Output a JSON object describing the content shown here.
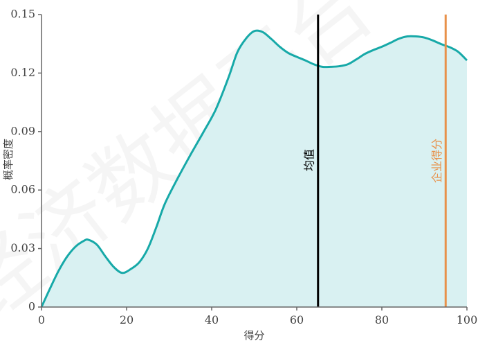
{
  "chart_data": {
    "type": "area",
    "xlabel": "得分",
    "ylabel": "概率密度",
    "xlim": [
      0,
      100
    ],
    "ylim": [
      0,
      0.15
    ],
    "x_ticks": [
      "0",
      "20",
      "40",
      "60",
      "80",
      "100"
    ],
    "y_ticks": [
      "0",
      "0.03",
      "0.06",
      "0.09",
      "0.12",
      "0.15"
    ],
    "grid": false,
    "series": [
      {
        "x": [
          0,
          2,
          4,
          6,
          8,
          10,
          11,
          13,
          15,
          17,
          19,
          21,
          23,
          25,
          27,
          29,
          32,
          35,
          38,
          41,
          44,
          46,
          48,
          50,
          52,
          54,
          56,
          58,
          60,
          62,
          64,
          66,
          68,
          70,
          72,
          74,
          76,
          78,
          80,
          82,
          84,
          86,
          88,
          90,
          92,
          94,
          96,
          98,
          100
        ],
        "y": [
          0.0,
          0.0095,
          0.0185,
          0.0258,
          0.031,
          0.034,
          0.0345,
          0.032,
          0.026,
          0.0205,
          0.0175,
          0.0195,
          0.023,
          0.03,
          0.041,
          0.053,
          0.066,
          0.078,
          0.0895,
          0.1015,
          0.118,
          0.1305,
          0.1375,
          0.1415,
          0.141,
          0.1375,
          0.1335,
          0.1303,
          0.1283,
          0.1265,
          0.1245,
          0.1232,
          0.1232,
          0.1235,
          0.1245,
          0.127,
          0.1298,
          0.1318,
          0.1335,
          0.1355,
          0.1376,
          0.1388,
          0.1388,
          0.1382,
          0.1367,
          0.1348,
          0.1332,
          0.1308,
          0.1265
        ],
        "line_color": "#17a9a8",
        "fill_color": "#d9f1f2"
      }
    ],
    "reference_lines": [
      {
        "label": "均值",
        "x": 65,
        "color": "#000000"
      },
      {
        "label": "企业得分",
        "x": 95,
        "color": "#e8914a"
      }
    ]
  }
}
